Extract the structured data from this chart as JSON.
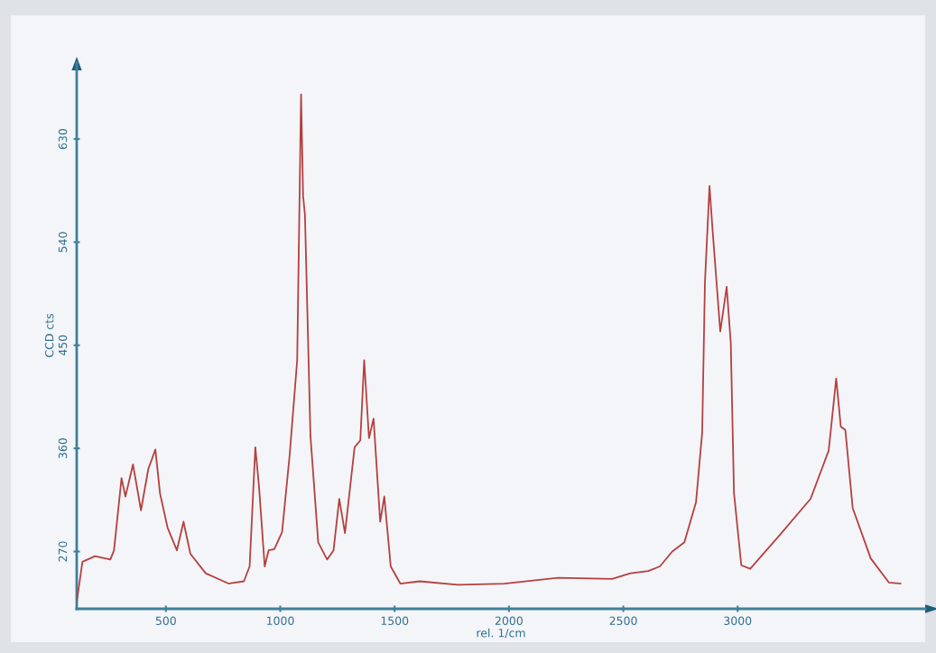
{
  "chart_data": {
    "type": "line",
    "xlabel": "rel. 1/cm",
    "ylabel": "CCD cts",
    "xlim": [
      110,
      3820
    ],
    "ylim": [
      220,
      697
    ],
    "xticks": [
      500,
      1000,
      1500,
      2000,
      2500,
      3000
    ],
    "yticks": [
      270,
      360,
      450,
      540,
      630
    ],
    "grid": false,
    "legend": false,
    "marker": "none",
    "line_style": "solid",
    "series": [
      {
        "color": "#b5403f",
        "x": [
          110,
          135,
          190,
          257,
          273,
          306,
          323,
          356,
          391,
          423,
          454,
          474,
          507,
          548,
          577,
          607,
          674,
          774,
          841,
          866,
          891,
          907,
          932,
          949,
          974,
          1008,
          1041,
          1074,
          1091,
          1100,
          1108,
          1132,
          1166,
          1205,
          1233,
          1258,
          1283,
          1325,
          1350,
          1367,
          1388,
          1408,
          1437,
          1455,
          1483,
          1525,
          1609,
          1776,
          1979,
          2215,
          2451,
          2531,
          2609,
          2660,
          2714,
          2767,
          2818,
          2845,
          2857,
          2877,
          2891,
          2924,
          2952,
          2970,
          2984,
          3016,
          3055,
          3187,
          3319,
          3398,
          3431,
          3451,
          3471,
          3503,
          3582,
          3661,
          3712
        ],
        "values": [
          226,
          261,
          266,
          263,
          271,
          334,
          318,
          346,
          306,
          342,
          359,
          321,
          291,
          271,
          296,
          268,
          251,
          242,
          244,
          257,
          361,
          327,
          257,
          271,
          272,
          287,
          354,
          437,
          669,
          580,
          564,
          371,
          278,
          263,
          271,
          316,
          286,
          361,
          367,
          437,
          369,
          386,
          296,
          318,
          257,
          242,
          244,
          241,
          242,
          247,
          246,
          251,
          253,
          257,
          270,
          278,
          313,
          374,
          505,
          589,
          549,
          462,
          501,
          452,
          321,
          258,
          255,
          285,
          316,
          358,
          421,
          379,
          376,
          308,
          264,
          243,
          242
        ]
      }
    ]
  }
}
